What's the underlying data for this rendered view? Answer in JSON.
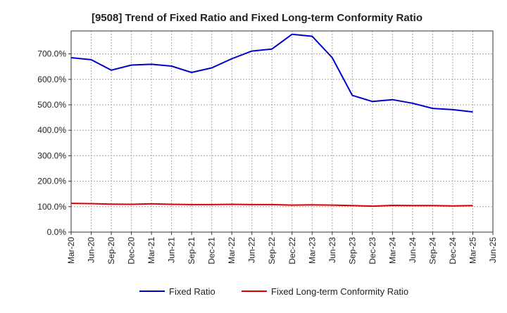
{
  "chart_data": {
    "type": "line",
    "title": "[9508]  Trend of Fixed Ratio and Fixed Long-term Conformity Ratio",
    "xlabel": "",
    "ylabel": "",
    "x": [
      "Mar-20",
      "Jun-20",
      "Sep-20",
      "Dec-20",
      "Mar-21",
      "Jun-21",
      "Sep-21",
      "Dec-21",
      "Mar-22",
      "Jun-22",
      "Sep-22",
      "Dec-22",
      "Mar-23",
      "Jun-23",
      "Sep-23",
      "Dec-23",
      "Mar-24",
      "Jun-24",
      "Sep-24",
      "Dec-24",
      "Mar-25",
      "Jun-25"
    ],
    "x_tick_labels": [
      "Mar-20",
      "Jun-20",
      "Sep-20",
      "Dec-20",
      "Mar-21",
      "Jun-21",
      "Sep-21",
      "Dec-21",
      "Mar-22",
      "Jun-22",
      "Sep-22",
      "Dec-22",
      "Mar-23",
      "Jun-23",
      "Sep-23",
      "Dec-23",
      "Mar-24",
      "Jun-24",
      "Sep-24",
      "Dec-24",
      "Mar-25",
      "Jun-25"
    ],
    "y_ticks": [
      0,
      100,
      200,
      300,
      400,
      500,
      600,
      700
    ],
    "y_tick_labels": [
      "0.0%",
      "100.0%",
      "200.0%",
      "300.0%",
      "400.0%",
      "500.0%",
      "600.0%",
      "700.0%"
    ],
    "ylim": [
      0,
      790
    ],
    "grid": true,
    "legend_position": "bottom",
    "series": [
      {
        "name": "Fixed Ratio",
        "color": "#0000cc",
        "values": [
          685,
          677,
          636,
          656,
          659,
          652,
          627,
          645,
          681,
          711,
          719,
          777,
          769,
          685,
          537,
          513,
          520,
          506,
          486,
          481,
          472,
          null
        ]
      },
      {
        "name": "Fixed Long-term Conformity Ratio",
        "color": "#dd0000",
        "values": [
          113,
          112,
          110,
          109,
          111,
          109,
          108,
          108,
          109,
          108,
          108,
          106,
          107,
          106,
          104,
          102,
          105,
          104,
          104,
          103,
          104,
          null
        ]
      }
    ]
  }
}
